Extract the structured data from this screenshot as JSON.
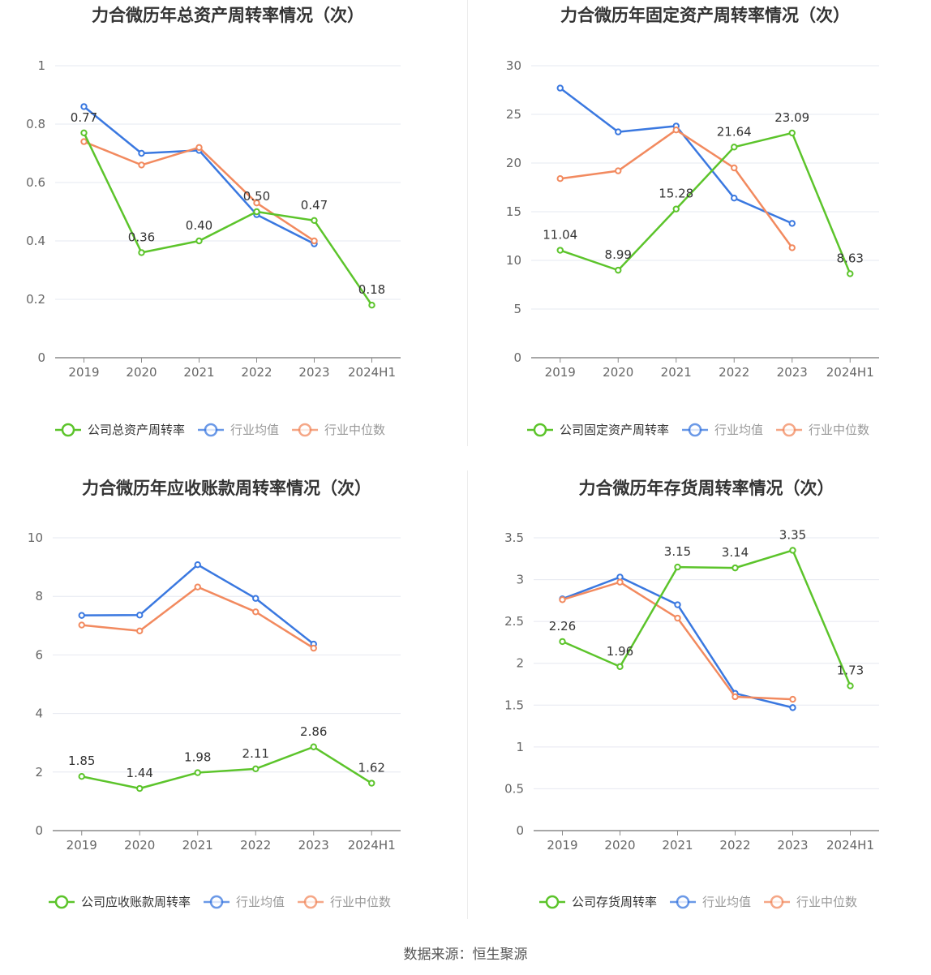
{
  "colors": {
    "company": "#5cc42b",
    "industry_avg": "#3a78e0",
    "industry_median": "#f28a5f",
    "grid": "#e6e8f0",
    "axis": "#8a8a8a"
  },
  "source_note": "数据来源：恒生聚源",
  "chart_data": [
    {
      "type": "line",
      "title": "力合微历年总资产周转率情况（次）",
      "categories": [
        "2019",
        "2020",
        "2021",
        "2022",
        "2023",
        "2024H1"
      ],
      "ylim": [
        0,
        1
      ],
      "yticks": [
        "0",
        "0.2",
        "0.4",
        "0.6",
        "0.8",
        "1"
      ],
      "ytick_values": [
        0,
        0.2,
        0.4,
        0.6,
        0.8,
        1
      ],
      "series": [
        {
          "name": "公司总资产周转率",
          "role": "company",
          "values": [
            0.77,
            0.36,
            0.4,
            0.5,
            0.47,
            0.18
          ],
          "labels": [
            "0.77",
            "0.36",
            "0.40",
            "0.50",
            "0.47",
            "0.18"
          ]
        },
        {
          "name": "行业均值",
          "role": "industry_avg",
          "values": [
            0.86,
            0.7,
            0.71,
            0.49,
            0.39,
            null
          ]
        },
        {
          "name": "行业中位数",
          "role": "industry_median",
          "values": [
            0.74,
            0.66,
            0.72,
            0.53,
            0.4,
            null
          ]
        }
      ]
    },
    {
      "type": "line",
      "title": "力合微历年固定资产周转率情况（次）",
      "categories": [
        "2019",
        "2020",
        "2021",
        "2022",
        "2023",
        "2024H1"
      ],
      "ylim": [
        0,
        30
      ],
      "yticks": [
        "0",
        "5",
        "10",
        "15",
        "20",
        "25",
        "30"
      ],
      "ytick_values": [
        0,
        5,
        10,
        15,
        20,
        25,
        30
      ],
      "series": [
        {
          "name": "公司固定资产周转率",
          "role": "company",
          "values": [
            11.04,
            8.99,
            15.28,
            21.64,
            23.09,
            8.63
          ],
          "labels": [
            "11.04",
            "8.99",
            "15.28",
            "21.64",
            "23.09",
            "8.63"
          ]
        },
        {
          "name": "行业均值",
          "role": "industry_avg",
          "values": [
            27.7,
            23.2,
            23.8,
            16.4,
            13.8,
            null
          ]
        },
        {
          "name": "行业中位数",
          "role": "industry_median",
          "values": [
            18.4,
            19.2,
            23.4,
            19.5,
            11.3,
            null
          ]
        }
      ]
    },
    {
      "type": "line",
      "title": "力合微历年应收账款周转率情况（次）",
      "categories": [
        "2019",
        "2020",
        "2021",
        "2022",
        "2023",
        "2024H1"
      ],
      "ylim": [
        0,
        10
      ],
      "yticks": [
        "0",
        "2",
        "4",
        "6",
        "8",
        "10"
      ],
      "ytick_values": [
        0,
        2,
        4,
        6,
        8,
        10
      ],
      "series": [
        {
          "name": "公司应收账款周转率",
          "role": "company",
          "values": [
            1.85,
            1.44,
            1.98,
            2.11,
            2.86,
            1.62
          ],
          "labels": [
            "1.85",
            "1.44",
            "1.98",
            "2.11",
            "2.86",
            "1.62"
          ]
        },
        {
          "name": "行业均值",
          "role": "industry_avg",
          "values": [
            7.35,
            7.36,
            9.08,
            7.93,
            6.37,
            null
          ]
        },
        {
          "name": "行业中位数",
          "role": "industry_median",
          "values": [
            7.02,
            6.82,
            8.32,
            7.47,
            6.23,
            null
          ]
        }
      ]
    },
    {
      "type": "line",
      "title": "力合微历年存货周转率情况（次）",
      "categories": [
        "2019",
        "2020",
        "2021",
        "2022",
        "2023",
        "2024H1"
      ],
      "ylim": [
        0,
        3.5
      ],
      "yticks": [
        "0",
        "0.5",
        "1",
        "1.5",
        "2",
        "2.5",
        "3",
        "3.5"
      ],
      "ytick_values": [
        0,
        0.5,
        1,
        1.5,
        2,
        2.5,
        3,
        3.5
      ],
      "series": [
        {
          "name": "公司存货周转率",
          "role": "company",
          "values": [
            2.26,
            1.96,
            3.15,
            3.14,
            3.35,
            1.73
          ],
          "labels": [
            "2.26",
            "1.96",
            "3.15",
            "3.14",
            "3.35",
            "1.73"
          ]
        },
        {
          "name": "行业均值",
          "role": "industry_avg",
          "values": [
            2.77,
            3.03,
            2.7,
            1.64,
            1.47,
            null
          ]
        },
        {
          "name": "行业中位数",
          "role": "industry_median",
          "values": [
            2.76,
            2.97,
            2.54,
            1.6,
            1.57,
            null
          ]
        }
      ]
    }
  ]
}
